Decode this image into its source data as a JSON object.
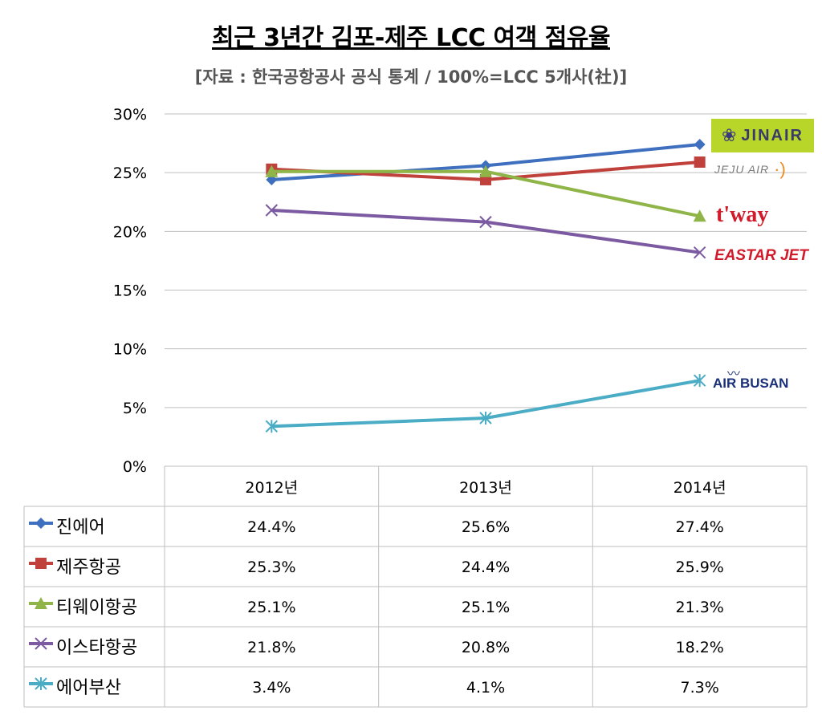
{
  "chart_data": {
    "type": "line",
    "title": "최근 3년간 김포-제주 LCC 여객 점유율",
    "subtitle": "[자료 : 한국공항공사 공식 통계 / 100%=LCC 5개사(社)]",
    "categories": [
      "2012년",
      "2013년",
      "2014년"
    ],
    "y_ticks": [
      "30%",
      "25%",
      "20%",
      "15%",
      "10%",
      "5%",
      "0%"
    ],
    "ylim": [
      0,
      30
    ],
    "grid": true,
    "legend_placement": "data-table",
    "series": [
      {
        "name": "진에어",
        "values": [
          24.4,
          25.6,
          27.4
        ],
        "labels": [
          "24.4%",
          "25.6%",
          "27.4%"
        ],
        "color": "#3f6fbf",
        "marker": "diamond"
      },
      {
        "name": "제주항공",
        "values": [
          25.3,
          24.4,
          25.9
        ],
        "labels": [
          "25.3%",
          "24.4%",
          "25.9%"
        ],
        "color": "#c0403c",
        "marker": "square"
      },
      {
        "name": "티웨이항공",
        "values": [
          25.1,
          25.1,
          21.3
        ],
        "labels": [
          "25.1%",
          "25.1%",
          "21.3%"
        ],
        "color": "#8fb548",
        "marker": "triangle"
      },
      {
        "name": "이스타항공",
        "values": [
          21.8,
          20.8,
          18.2
        ],
        "labels": [
          "21.8%",
          "20.8%",
          "18.2%"
        ],
        "color": "#7b5aa2",
        "marker": "x"
      },
      {
        "name": "에어부산",
        "values": [
          3.4,
          4.1,
          7.3
        ],
        "labels": [
          "3.4%",
          "4.1%",
          "7.3%"
        ],
        "color": "#4bacc6",
        "marker": "star"
      }
    ]
  },
  "logos": {
    "jinair": "JINAIR",
    "jejuair": "JEJU AIR",
    "tway": "t'way",
    "eastarjet": "EASTAR JET",
    "airbusan": "AIR BUSAN"
  }
}
